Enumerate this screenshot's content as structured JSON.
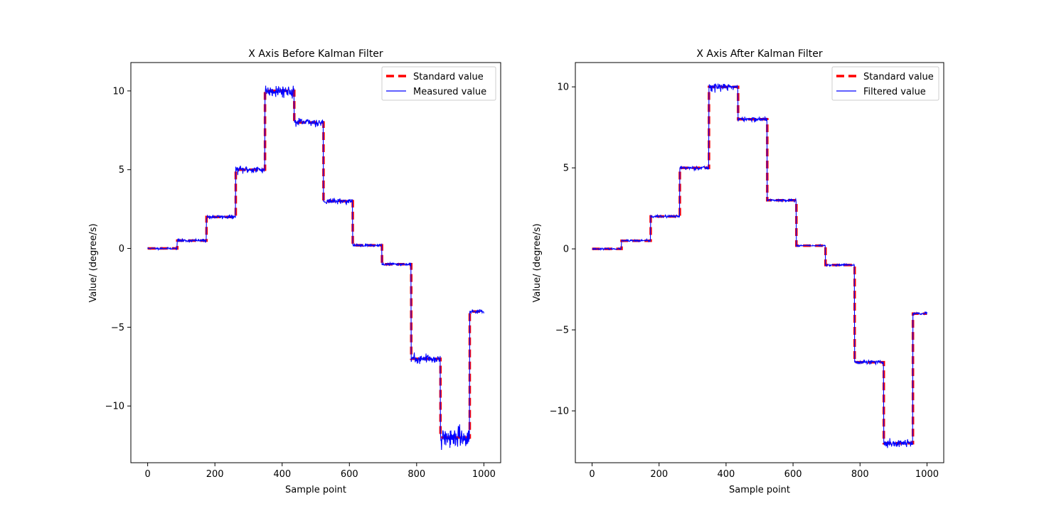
{
  "figure": {
    "background": "#ffffff"
  },
  "chart_data": [
    {
      "type": "line",
      "title": "X Axis Before Kalman Filter",
      "xlabel": "Sample point",
      "ylabel": "Value/ (degree/s)",
      "xlim": [
        -50,
        1050
      ],
      "ylim": [
        -13.6,
        11.8
      ],
      "xticks": [
        0,
        200,
        400,
        600,
        800,
        1000
      ],
      "yticks": [
        -10,
        -5,
        0,
        5,
        10
      ],
      "legend_position": "top-right",
      "grid": false,
      "series": [
        {
          "name": "Standard value",
          "color": "#ff0000",
          "style": "dashed",
          "steps": [
            {
              "x0": 0,
              "x1": 88,
              "y": 0
            },
            {
              "x0": 88,
              "x1": 175,
              "y": 0.5
            },
            {
              "x0": 175,
              "x1": 262,
              "y": 2
            },
            {
              "x0": 262,
              "x1": 349,
              "y": 5
            },
            {
              "x0": 349,
              "x1": 436,
              "y": 10
            },
            {
              "x0": 436,
              "x1": 523,
              "y": 8
            },
            {
              "x0": 523,
              "x1": 610,
              "y": 3
            },
            {
              "x0": 610,
              "x1": 697,
              "y": 0.2
            },
            {
              "x0": 697,
              "x1": 784,
              "y": -1
            },
            {
              "x0": 784,
              "x1": 871,
              "y": -7
            },
            {
              "x0": 871,
              "x1": 958,
              "y": -12
            },
            {
              "x0": 958,
              "x1": 1000,
              "y": -4
            }
          ]
        },
        {
          "name": "Measured value",
          "color": "#0000ff",
          "style": "solid",
          "noise": [
            0.03,
            0.05,
            0.06,
            0.12,
            0.18,
            0.12,
            0.08,
            0.04,
            0.05,
            0.15,
            0.3,
            0.06
          ],
          "seed": 11
        }
      ]
    },
    {
      "type": "line",
      "title": "X Axis After Kalman Filter",
      "xlabel": "Sample point",
      "ylabel": "Value/ (degree/s)",
      "xlim": [
        -50,
        1050
      ],
      "ylim": [
        -13.2,
        11.5
      ],
      "xticks": [
        0,
        200,
        400,
        600,
        800,
        1000
      ],
      "yticks": [
        -10,
        -5,
        0,
        5,
        10
      ],
      "legend_position": "top-right",
      "grid": false,
      "series": [
        {
          "name": "Standard value",
          "color": "#ff0000",
          "style": "dashed",
          "steps": [
            {
              "x0": 0,
              "x1": 88,
              "y": 0
            },
            {
              "x0": 88,
              "x1": 175,
              "y": 0.5
            },
            {
              "x0": 175,
              "x1": 262,
              "y": 2
            },
            {
              "x0": 262,
              "x1": 349,
              "y": 5
            },
            {
              "x0": 349,
              "x1": 436,
              "y": 10
            },
            {
              "x0": 436,
              "x1": 523,
              "y": 8
            },
            {
              "x0": 523,
              "x1": 610,
              "y": 3
            },
            {
              "x0": 610,
              "x1": 697,
              "y": 0.2
            },
            {
              "x0": 697,
              "x1": 784,
              "y": -1
            },
            {
              "x0": 784,
              "x1": 871,
              "y": -7
            },
            {
              "x0": 871,
              "x1": 958,
              "y": -12
            },
            {
              "x0": 958,
              "x1": 1000,
              "y": -4
            }
          ]
        },
        {
          "name": "Filtered value",
          "color": "#0000ff",
          "style": "solid",
          "noise": [
            0.02,
            0.03,
            0.04,
            0.06,
            0.12,
            0.07,
            0.04,
            0.02,
            0.03,
            0.07,
            0.15,
            0.04
          ],
          "seed": 23
        }
      ]
    }
  ]
}
